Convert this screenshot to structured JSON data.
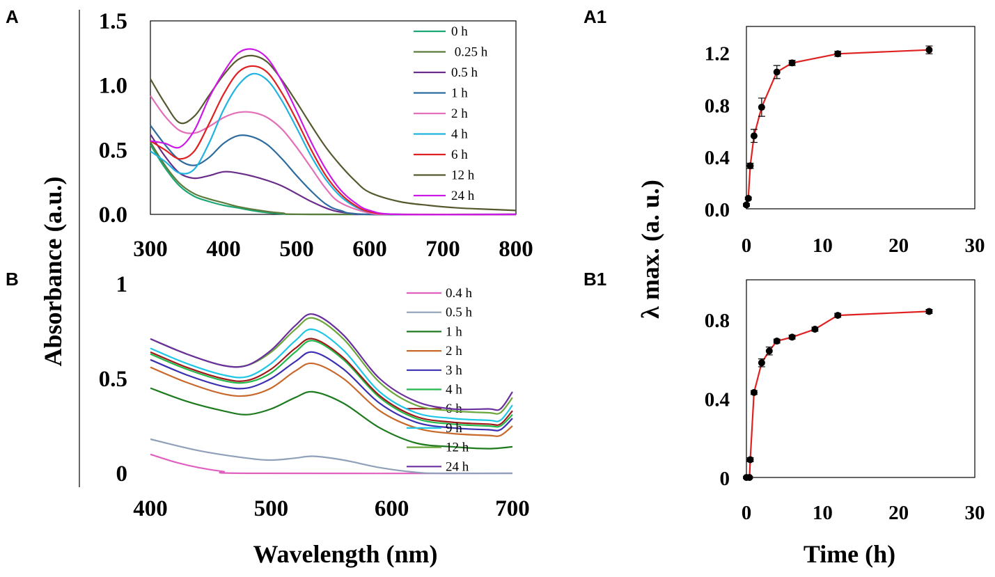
{
  "figure": {
    "y_title": "Absorbance (a.u.)",
    "x_title": "Wavelength (nm)",
    "y_title_right": "λ max. (a. u.)",
    "x_title_right": "Time (h)"
  },
  "chart_data": [
    {
      "id": "A",
      "type": "line",
      "panel_label": "A",
      "xlabel": "Wavelength (nm)",
      "ylabel": "Absorbance (a.u.)",
      "xlim": [
        300,
        800
      ],
      "ylim": [
        0,
        1.5
      ],
      "xticks": [
        "300",
        "400",
        "500",
        "600",
        "700",
        "800"
      ],
      "yticks": [
        "0.0",
        "0.5",
        "1.0",
        "1.5"
      ],
      "legend_position": "top-right",
      "series": [
        {
          "name": "0 h",
          "color": "#1ba673",
          "x": [
            300,
            320,
            340,
            360,
            380,
            400,
            420,
            450,
            480,
            520,
            800
          ],
          "y": [
            0.54,
            0.36,
            0.22,
            0.14,
            0.1,
            0.07,
            0.05,
            0.02,
            0.005,
            0,
            0
          ]
        },
        {
          "name": " 0.25 h",
          "color": "#5c7a3a",
          "x": [
            300,
            320,
            340,
            360,
            380,
            400,
            420,
            450,
            480,
            520,
            800
          ],
          "y": [
            0.56,
            0.38,
            0.24,
            0.16,
            0.12,
            0.09,
            0.06,
            0.03,
            0.01,
            0,
            0
          ]
        },
        {
          "name": "0.5 h",
          "color": "#6b2d8a",
          "x": [
            300,
            320,
            340,
            360,
            380,
            400,
            420,
            450,
            480,
            520,
            550,
            580,
            600,
            800
          ],
          "y": [
            0.62,
            0.45,
            0.32,
            0.28,
            0.3,
            0.33,
            0.32,
            0.28,
            0.22,
            0.1,
            0.03,
            0.005,
            0,
            0
          ]
        },
        {
          "name": "1 h",
          "color": "#2e6b9e",
          "x": [
            300,
            320,
            340,
            360,
            380,
            400,
            420,
            440,
            460,
            480,
            500,
            520,
            540,
            560,
            600,
            800
          ],
          "y": [
            0.69,
            0.54,
            0.42,
            0.38,
            0.44,
            0.55,
            0.61,
            0.6,
            0.54,
            0.43,
            0.3,
            0.18,
            0.08,
            0.03,
            0,
            0
          ]
        },
        {
          "name": "2 h",
          "color": "#e36fb8",
          "x": [
            300,
            320,
            340,
            360,
            380,
            400,
            420,
            440,
            460,
            480,
            500,
            520,
            540,
            560,
            600,
            640,
            800
          ],
          "y": [
            0.92,
            0.76,
            0.65,
            0.63,
            0.68,
            0.75,
            0.79,
            0.79,
            0.75,
            0.66,
            0.52,
            0.36,
            0.2,
            0.09,
            0.01,
            0,
            0
          ]
        },
        {
          "name": "4 h",
          "color": "#1fb3e0",
          "x": [
            300,
            320,
            340,
            360,
            380,
            400,
            420,
            440,
            460,
            480,
            500,
            520,
            540,
            560,
            580,
            600,
            640,
            800
          ],
          "y": [
            0.49,
            0.41,
            0.32,
            0.35,
            0.55,
            0.81,
            1.0,
            1.09,
            1.04,
            0.88,
            0.67,
            0.45,
            0.27,
            0.14,
            0.06,
            0.02,
            0,
            0
          ]
        },
        {
          "name": "6 h",
          "color": "#e02121",
          "x": [
            300,
            320,
            340,
            360,
            380,
            400,
            420,
            440,
            460,
            480,
            500,
            520,
            540,
            560,
            580,
            600,
            640,
            800
          ],
          "y": [
            0.57,
            0.5,
            0.43,
            0.49,
            0.7,
            0.93,
            1.1,
            1.15,
            1.1,
            0.94,
            0.73,
            0.5,
            0.3,
            0.16,
            0.07,
            0.02,
            0,
            0
          ]
        },
        {
          "name": "12 h",
          "color": "#56592e",
          "x": [
            300,
            320,
            340,
            360,
            380,
            400,
            420,
            440,
            460,
            480,
            500,
            520,
            540,
            560,
            580,
            600,
            640,
            680,
            720,
            760,
            800
          ],
          "y": [
            1.05,
            0.86,
            0.71,
            0.76,
            0.92,
            1.08,
            1.2,
            1.23,
            1.18,
            1.04,
            0.87,
            0.69,
            0.52,
            0.38,
            0.26,
            0.17,
            0.1,
            0.07,
            0.05,
            0.04,
            0.03
          ]
        },
        {
          "name": "24 h",
          "color": "#cc18e6",
          "x": [
            300,
            320,
            340,
            360,
            380,
            400,
            420,
            440,
            460,
            480,
            500,
            520,
            540,
            560,
            580,
            600,
            640,
            800
          ],
          "y": [
            0.57,
            0.55,
            0.52,
            0.65,
            0.9,
            1.1,
            1.25,
            1.28,
            1.21,
            1.03,
            0.8,
            0.56,
            0.35,
            0.19,
            0.09,
            0.03,
            0,
            0
          ]
        }
      ]
    },
    {
      "id": "B",
      "type": "line",
      "panel_label": "B",
      "xlabel": "Wavelength (nm)",
      "ylabel": "Absorbance (a.u.)",
      "xlim": [
        400,
        700
      ],
      "ylim": [
        0,
        1
      ],
      "xticks": [
        "400",
        "500",
        "600",
        "700"
      ],
      "yticks": [
        "0",
        "0.5",
        "1"
      ],
      "legend_position": "top-right",
      "series": [
        {
          "name": "0.4 h",
          "color": "#e060c0",
          "x": [
            400,
            420,
            440,
            460,
            480,
            700
          ],
          "y": [
            0.1,
            0.06,
            0.03,
            0.01,
            0,
            0
          ]
        },
        {
          "name": "0.5 h",
          "color": "#8fa0b8",
          "x": [
            400,
            440,
            480,
            500,
            520,
            535,
            560,
            590,
            620,
            640,
            700
          ],
          "y": [
            0.18,
            0.12,
            0.08,
            0.07,
            0.08,
            0.09,
            0.07,
            0.03,
            0.005,
            0,
            0
          ]
        },
        {
          "name": "1 h",
          "color": "#1e7a1e",
          "x": [
            400,
            430,
            460,
            480,
            500,
            520,
            535,
            560,
            590,
            620,
            650,
            680,
            700
          ],
          "y": [
            0.45,
            0.38,
            0.33,
            0.31,
            0.34,
            0.4,
            0.43,
            0.37,
            0.24,
            0.16,
            0.14,
            0.13,
            0.14
          ]
        },
        {
          "name": "2 h",
          "color": "#c8682a",
          "x": [
            400,
            430,
            460,
            480,
            500,
            520,
            535,
            560,
            590,
            620,
            650,
            680,
            690,
            700
          ],
          "y": [
            0.56,
            0.48,
            0.42,
            0.41,
            0.45,
            0.54,
            0.58,
            0.5,
            0.33,
            0.24,
            0.21,
            0.2,
            0.2,
            0.25
          ]
        },
        {
          "name": "3 h",
          "color": "#3a2fb0",
          "x": [
            400,
            430,
            460,
            480,
            500,
            520,
            535,
            560,
            590,
            620,
            650,
            680,
            690,
            700
          ],
          "y": [
            0.6,
            0.52,
            0.46,
            0.45,
            0.5,
            0.59,
            0.64,
            0.55,
            0.37,
            0.27,
            0.24,
            0.23,
            0.23,
            0.29
          ]
        },
        {
          "name": "4 h",
          "color": "#22b84a",
          "x": [
            400,
            430,
            460,
            480,
            500,
            520,
            535,
            560,
            590,
            620,
            650,
            680,
            690,
            700
          ],
          "y": [
            0.63,
            0.55,
            0.49,
            0.48,
            0.53,
            0.64,
            0.7,
            0.6,
            0.4,
            0.29,
            0.26,
            0.25,
            0.25,
            0.31
          ]
        },
        {
          "name": "6 h",
          "color": "#a01818",
          "x": [
            400,
            430,
            460,
            480,
            500,
            520,
            535,
            560,
            590,
            620,
            650,
            680,
            690,
            700
          ],
          "y": [
            0.64,
            0.56,
            0.5,
            0.49,
            0.55,
            0.66,
            0.71,
            0.61,
            0.41,
            0.3,
            0.27,
            0.26,
            0.26,
            0.33
          ]
        },
        {
          "name": "9 h",
          "color": "#1fc6e6",
          "x": [
            400,
            430,
            460,
            480,
            500,
            520,
            535,
            560,
            590,
            620,
            650,
            680,
            690,
            700
          ],
          "y": [
            0.66,
            0.58,
            0.52,
            0.51,
            0.58,
            0.7,
            0.76,
            0.65,
            0.43,
            0.32,
            0.29,
            0.28,
            0.28,
            0.36
          ]
        },
        {
          "name": "12 h",
          "color": "#6aa63a",
          "x": [
            400,
            430,
            460,
            480,
            500,
            520,
            535,
            560,
            590,
            620,
            650,
            680,
            690,
            700
          ],
          "y": [
            0.71,
            0.63,
            0.57,
            0.57,
            0.64,
            0.76,
            0.82,
            0.71,
            0.48,
            0.36,
            0.33,
            0.32,
            0.32,
            0.4
          ]
        },
        {
          "name": "24 h",
          "color": "#6a2e9e",
          "x": [
            400,
            430,
            460,
            480,
            500,
            520,
            535,
            560,
            590,
            620,
            650,
            680,
            690,
            700
          ],
          "y": [
            0.71,
            0.63,
            0.57,
            0.57,
            0.65,
            0.78,
            0.84,
            0.73,
            0.5,
            0.38,
            0.34,
            0.34,
            0.34,
            0.43
          ]
        }
      ]
    },
    {
      "id": "A1",
      "type": "scatter",
      "panel_label": "A1",
      "xlabel": "Time (h)",
      "ylabel": "λ max. (a. u.)",
      "xlim": [
        0,
        30
      ],
      "ylim": [
        0,
        1.4
      ],
      "xticks": [
        "0",
        "10",
        "20",
        "30"
      ],
      "yticks": [
        "0.0",
        "0.4",
        "0.8",
        "1.2"
      ],
      "line_color": "#e02121",
      "series": [
        {
          "name": "λ max",
          "x": [
            0,
            0.25,
            0.5,
            1,
            2,
            4,
            6,
            12,
            24
          ],
          "y": [
            0.03,
            0.08,
            0.33,
            0.56,
            0.78,
            1.05,
            1.12,
            1.19,
            1.22
          ],
          "err": [
            0.01,
            0.01,
            0.02,
            0.05,
            0.07,
            0.05,
            0.02,
            0.02,
            0.03
          ]
        }
      ]
    },
    {
      "id": "B1",
      "type": "scatter",
      "panel_label": "B1",
      "xlabel": "Time (h)",
      "ylabel": "λ max. (a. u.)",
      "xlim": [
        0,
        30
      ],
      "ylim": [
        0,
        1.0
      ],
      "xticks": [
        "0",
        "10",
        "20",
        "30"
      ],
      "yticks": [
        "0",
        "0.4",
        "0.8"
      ],
      "line_color": "#e02121",
      "series": [
        {
          "name": "λ max",
          "x": [
            0,
            0.4,
            0.5,
            1,
            2,
            3,
            4,
            6,
            9,
            12,
            24
          ],
          "y": [
            0,
            0,
            0.09,
            0.43,
            0.58,
            0.64,
            0.69,
            0.71,
            0.75,
            0.82,
            0.84
          ],
          "err": [
            0.005,
            0.005,
            0.01,
            0.01,
            0.02,
            0.02,
            0.01,
            0.01,
            0.01,
            0.01,
            0.01
          ]
        }
      ]
    }
  ]
}
